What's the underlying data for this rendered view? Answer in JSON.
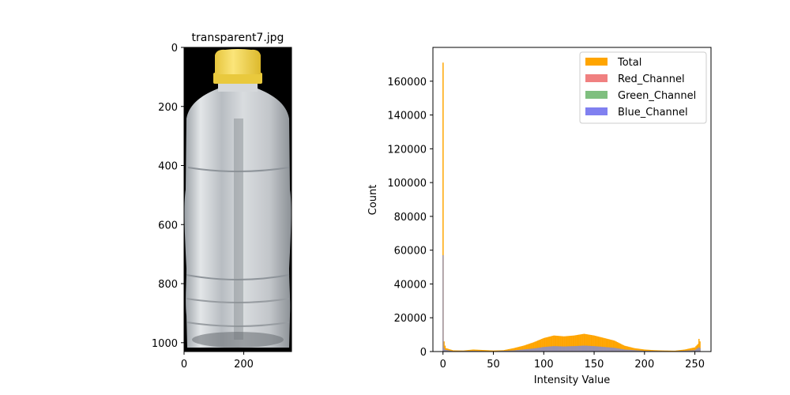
{
  "chart_data": [
    {
      "type": "image",
      "title": "transparent7.jpg",
      "description_axes": "pixel coordinates",
      "xlim": [
        0,
        360
      ],
      "ylim": [
        1030,
        0
      ],
      "xticks": [
        0,
        200
      ],
      "yticks": [
        0,
        200,
        400,
        600,
        800,
        1000
      ],
      "xtick_labels": [
        "0",
        "200"
      ],
      "ytick_labels": [
        "0",
        "200",
        "400",
        "600",
        "800",
        "1000"
      ],
      "colors": {
        "background": "#000000",
        "cap": "#f5dc5a",
        "cap_ring": "#e9c93d",
        "bottle": "#c8ccd0"
      }
    },
    {
      "type": "histogram",
      "title": "",
      "xlabel": "Intensity Value",
      "ylabel": "Count",
      "xlim": [
        -10,
        266
      ],
      "ylim": [
        0,
        180000
      ],
      "xticks": [
        0,
        50,
        100,
        150,
        200,
        250
      ],
      "xtick_labels": [
        "0",
        "50",
        "100",
        "150",
        "200",
        "250"
      ],
      "yticks": [
        0,
        20000,
        40000,
        60000,
        80000,
        100000,
        120000,
        140000,
        160000
      ],
      "ytick_labels": [
        "0",
        "20000",
        "40000",
        "60000",
        "80000",
        "100000",
        "120000",
        "140000",
        "160000"
      ],
      "legend_position": "top-right",
      "series": [
        {
          "name": "Total",
          "color": "#ffa500",
          "points": [
            [
              0,
              171000
            ],
            [
              1,
              6000
            ],
            [
              2,
              3500
            ],
            [
              3,
              2000
            ],
            [
              10,
              700
            ],
            [
              20,
              600
            ],
            [
              30,
              1200
            ],
            [
              40,
              900
            ],
            [
              50,
              600
            ],
            [
              60,
              800
            ],
            [
              70,
              2000
            ],
            [
              80,
              3500
            ],
            [
              90,
              5500
            ],
            [
              100,
              8000
            ],
            [
              110,
              9500
            ],
            [
              120,
              9000
            ],
            [
              130,
              9500
            ],
            [
              140,
              10500
            ],
            [
              150,
              9500
            ],
            [
              160,
              8000
            ],
            [
              170,
              6500
            ],
            [
              180,
              3500
            ],
            [
              190,
              2000
            ],
            [
              200,
              1200
            ],
            [
              210,
              800
            ],
            [
              220,
              600
            ],
            [
              230,
              500
            ],
            [
              240,
              1200
            ],
            [
              250,
              2500
            ],
            [
              253,
              4500
            ],
            [
              254,
              7500
            ],
            [
              255,
              6000
            ]
          ]
        },
        {
          "name": "Red_Channel",
          "color": "#f08080",
          "points": [
            [
              0,
              57000
            ],
            [
              1,
              2000
            ],
            [
              2,
              1000
            ],
            [
              10,
              250
            ],
            [
              30,
              400
            ],
            [
              50,
              200
            ],
            [
              70,
              650
            ],
            [
              90,
              1800
            ],
            [
              100,
              2700
            ],
            [
              110,
              3200
            ],
            [
              120,
              3000
            ],
            [
              130,
              3200
            ],
            [
              140,
              3500
            ],
            [
              150,
              3200
            ],
            [
              160,
              2700
            ],
            [
              170,
              2200
            ],
            [
              180,
              1200
            ],
            [
              200,
              400
            ],
            [
              230,
              200
            ],
            [
              250,
              800
            ],
            [
              254,
              2500
            ],
            [
              255,
              2000
            ]
          ]
        },
        {
          "name": "Green_Channel",
          "color": "#7fbf7f",
          "points": [
            [
              0,
              57000
            ],
            [
              1,
              2000
            ],
            [
              2,
              1000
            ],
            [
              10,
              250
            ],
            [
              30,
              400
            ],
            [
              50,
              200
            ],
            [
              70,
              650
            ],
            [
              90,
              1800
            ],
            [
              100,
              2700
            ],
            [
              110,
              3200
            ],
            [
              120,
              3000
            ],
            [
              130,
              3200
            ],
            [
              140,
              3500
            ],
            [
              150,
              3200
            ],
            [
              160,
              2700
            ],
            [
              170,
              2200
            ],
            [
              180,
              1200
            ],
            [
              200,
              400
            ],
            [
              230,
              200
            ],
            [
              250,
              800
            ],
            [
              254,
              2500
            ],
            [
              255,
              2000
            ]
          ]
        },
        {
          "name": "Blue_Channel",
          "color": "#8080f0",
          "points": [
            [
              0,
              57000
            ],
            [
              1,
              2000
            ],
            [
              2,
              1000
            ],
            [
              10,
              250
            ],
            [
              30,
              400
            ],
            [
              50,
              200
            ],
            [
              70,
              650
            ],
            [
              90,
              1800
            ],
            [
              100,
              2700
            ],
            [
              110,
              3200
            ],
            [
              120,
              3000
            ],
            [
              130,
              3200
            ],
            [
              140,
              3500
            ],
            [
              150,
              3200
            ],
            [
              160,
              2700
            ],
            [
              170,
              2200
            ],
            [
              180,
              1200
            ],
            [
              200,
              400
            ],
            [
              230,
              200
            ],
            [
              250,
              800
            ],
            [
              254,
              2500
            ],
            [
              255,
              2000
            ]
          ]
        }
      ]
    }
  ]
}
